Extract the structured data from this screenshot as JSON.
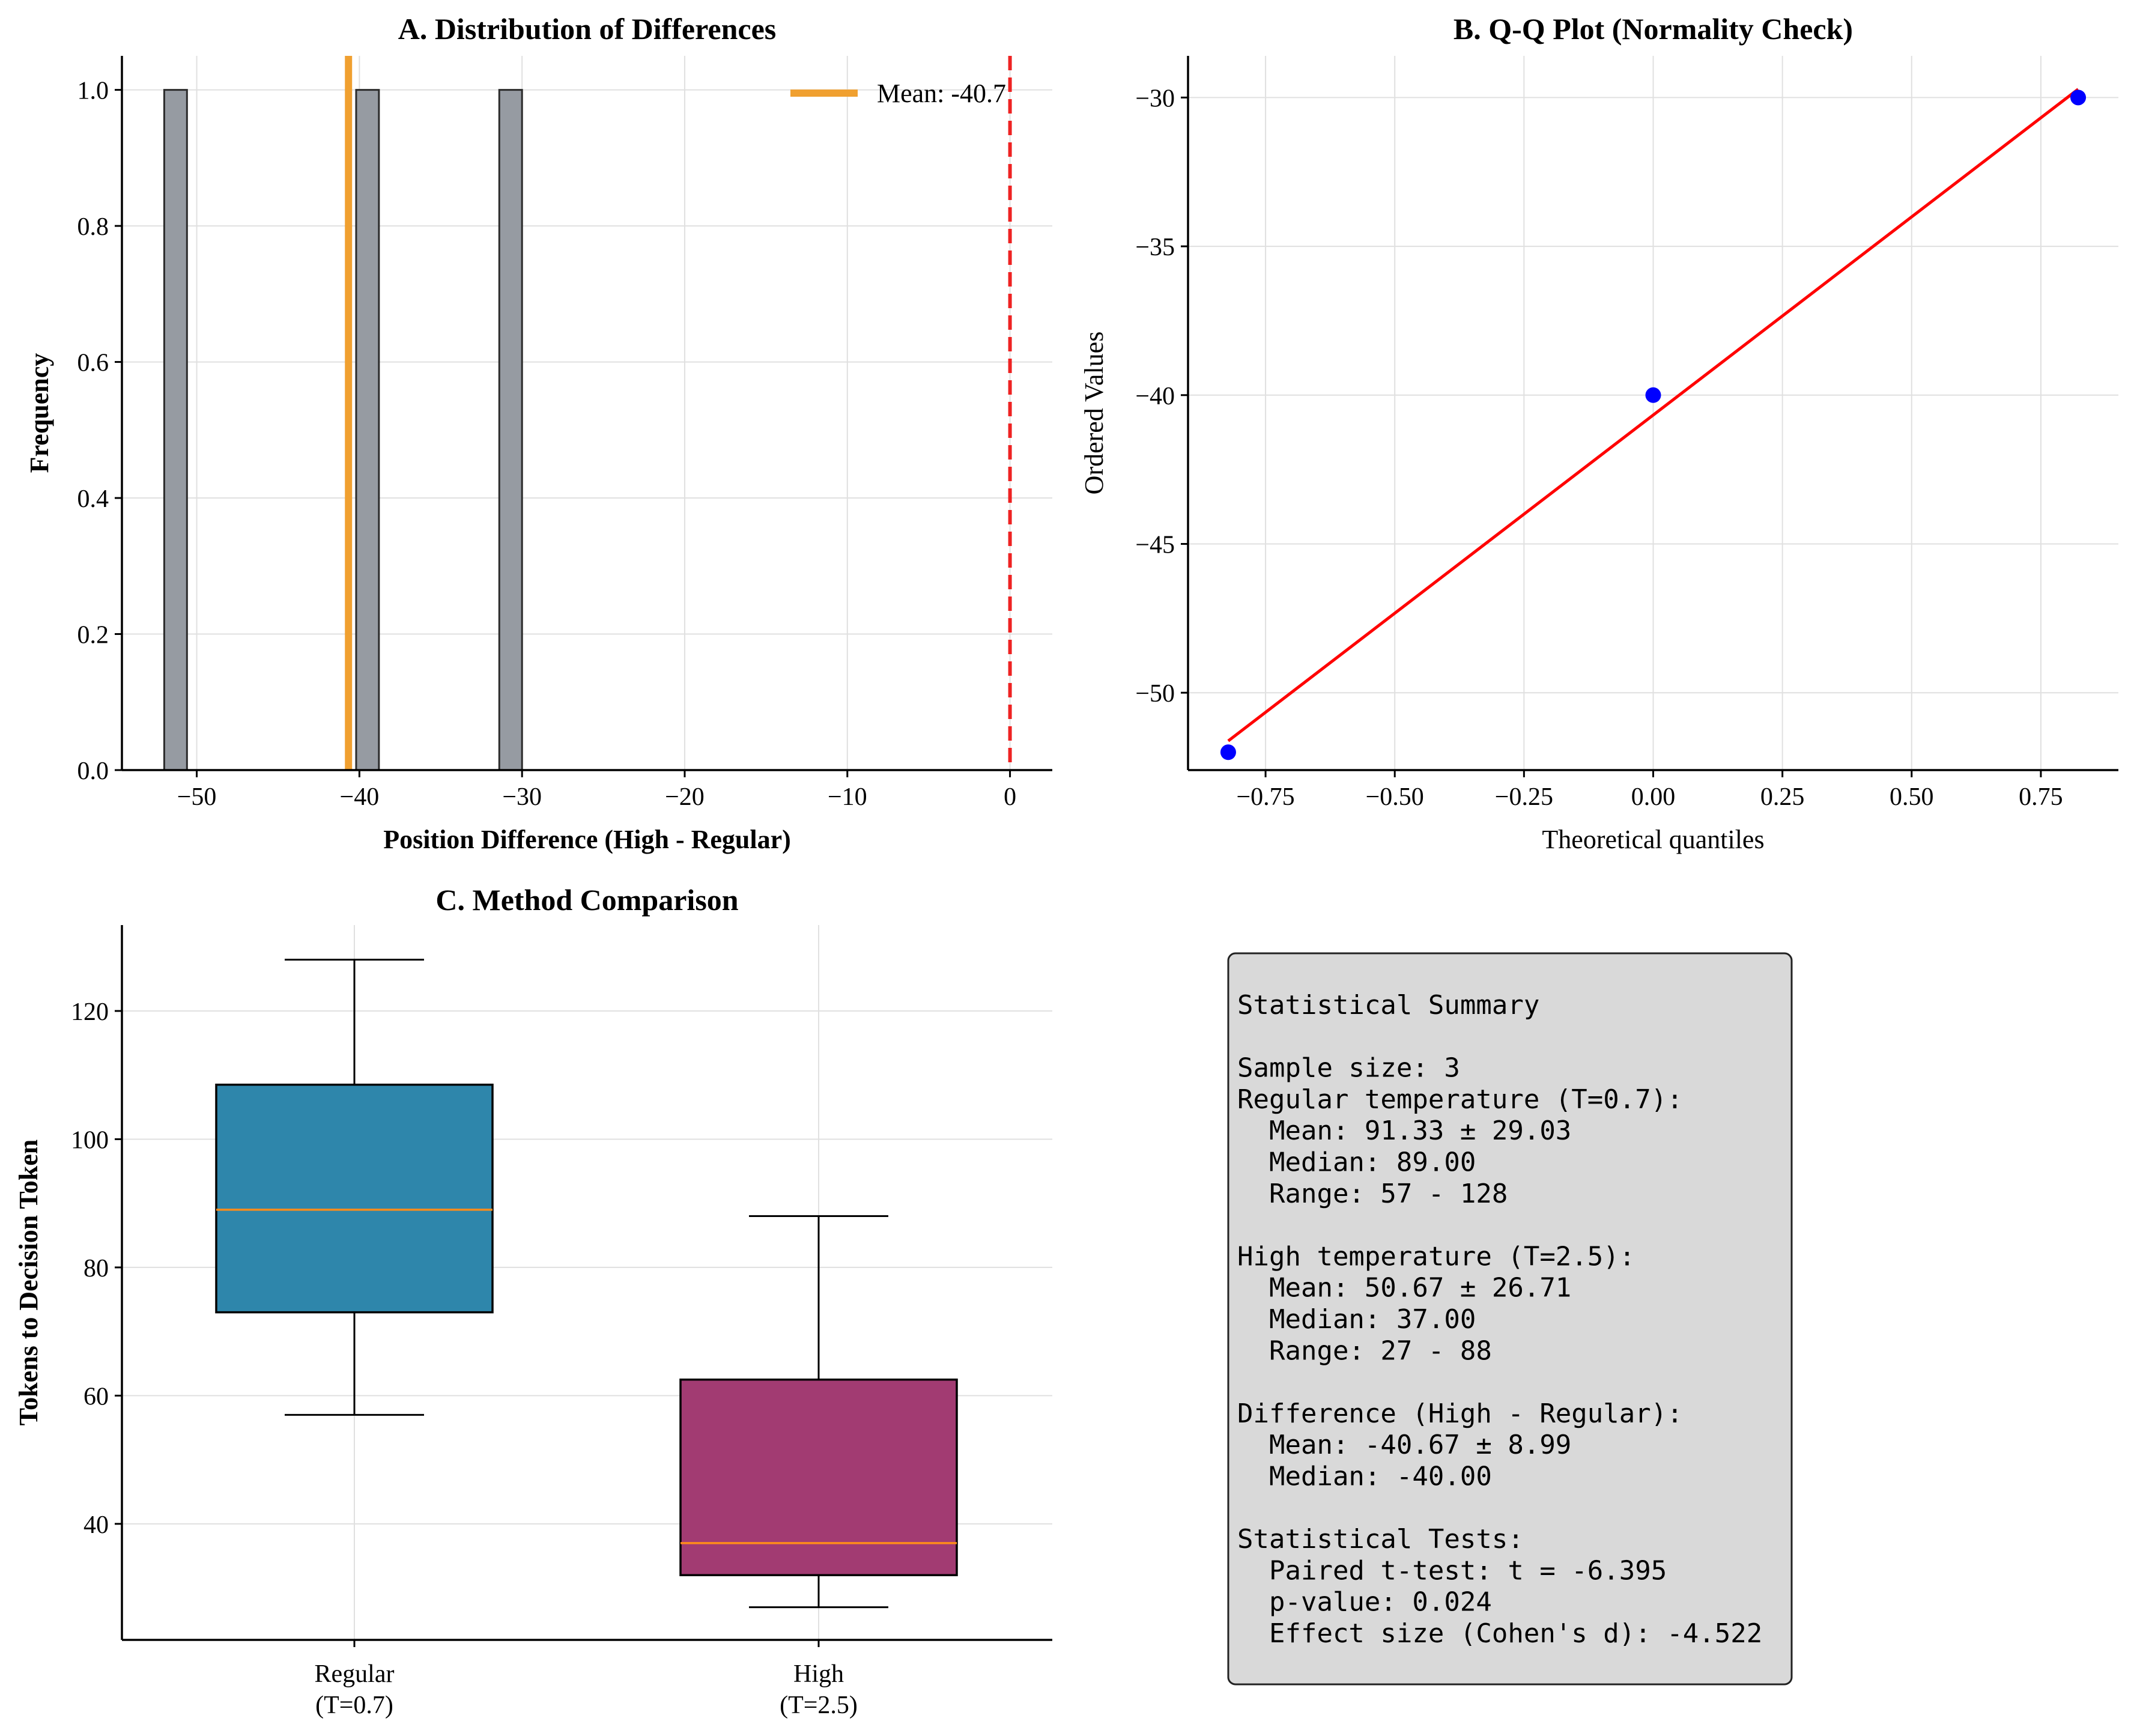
{
  "chart_data": [
    {
      "id": "A",
      "type": "bar",
      "title": "A. Distribution of Differences",
      "xlabel": "Position Difference (High - Regular)",
      "ylabel": "Frequency",
      "xlim": [
        -54.6,
        2.6
      ],
      "ylim": [
        0,
        1.05
      ],
      "xticks": [
        -50,
        -40,
        -30,
        -20,
        -10,
        0
      ],
      "xtick_labels": [
        "−50",
        "−40",
        "−30",
        "−20",
        "−10",
        "0"
      ],
      "yticks": [
        0.0,
        0.2,
        0.4,
        0.6,
        0.8,
        1.0
      ],
      "ytick_labels": [
        "0.0",
        "0.2",
        "0.4",
        "0.6",
        "0.8",
        "1.0"
      ],
      "bins": [
        {
          "x0": -52.0,
          "x1": -50.6,
          "count": 1
        },
        {
          "x0": -40.2,
          "x1": -38.8,
          "count": 1
        },
        {
          "x0": -31.4,
          "x1": -30.0,
          "count": 1
        }
      ],
      "mean_line": {
        "x": -40.67,
        "color": "#f0a030",
        "label": "Mean: -40.7"
      },
      "zero_line": {
        "x": 0,
        "color": "#ee2222",
        "style": "dashed"
      },
      "bar_color": "#969ba2",
      "grid": true,
      "legend_position": "top-right"
    },
    {
      "id": "B",
      "type": "scatter",
      "title": "B. Q-Q Plot (Normality Check)",
      "xlabel": "Theoretical quantiles",
      "ylabel": "Ordered Values",
      "xlim": [
        -0.9,
        0.9
      ],
      "ylim": [
        -52.6,
        -28.6
      ],
      "xticks": [
        -0.75,
        -0.5,
        -0.25,
        0.0,
        0.25,
        0.5,
        0.75
      ],
      "xtick_labels": [
        "−0.75",
        "−0.50",
        "−0.25",
        "0.00",
        "0.25",
        "0.50",
        "0.75"
      ],
      "yticks": [
        -50,
        -45,
        -40,
        -35,
        -30
      ],
      "ytick_labels": [
        "−50",
        "−45",
        "−40",
        "−35",
        "−30"
      ],
      "points": [
        {
          "x": -0.8222,
          "y": -52
        },
        {
          "x": 0.0,
          "y": -40
        },
        {
          "x": 0.8222,
          "y": -30
        }
      ],
      "fit_line": {
        "x": [
          -0.8222,
          0.8222
        ],
        "y": [
          -51.62,
          -29.72
        ],
        "color": "#ff0000"
      },
      "point_color": "#0000ff",
      "grid": true
    },
    {
      "id": "C",
      "type": "box",
      "title": "C. Method Comparison",
      "ylabel": "Tokens to Decision Token",
      "ylim": [
        21.9,
        133.4
      ],
      "yticks": [
        40,
        60,
        80,
        100,
        120
      ],
      "ytick_labels": [
        "40",
        "60",
        "80",
        "100",
        "120"
      ],
      "boxes": [
        {
          "label_line1": "Regular",
          "label_line2": "(T=0.7)",
          "whisker_low": 57,
          "q1": 73,
          "median": 89,
          "q3": 108.5,
          "whisker_high": 128,
          "color": "#2e86ab"
        },
        {
          "label_line1": "High",
          "label_line2": "(T=2.5)",
          "whisker_low": 27,
          "q1": 32,
          "median": 37,
          "q3": 62.5,
          "whisker_high": 88,
          "color": "#a23b72"
        }
      ],
      "median_color": "#ff8c1a",
      "grid": true
    }
  ],
  "summary": {
    "lines": [
      "Statistical Summary",
      "",
      "Sample size: 3",
      "Regular temperature (T=0.7):",
      "  Mean: 91.33 ± 29.03",
      "  Median: 89.00",
      "  Range: 57 - 128",
      "",
      "High temperature (T=2.5):",
      "  Mean: 50.67 ± 26.71",
      "  Median: 37.00",
      "  Range: 27 - 88",
      "",
      "Difference (High - Regular):",
      "  Mean: -40.67 ± 8.99",
      "  Median: -40.00",
      "",
      "Statistical Tests:",
      "  Paired t-test: t = -6.395",
      "  p-value: 0.024",
      "  Effect size (Cohen's d): -4.522"
    ],
    "box_color": "#d9d9d9"
  }
}
